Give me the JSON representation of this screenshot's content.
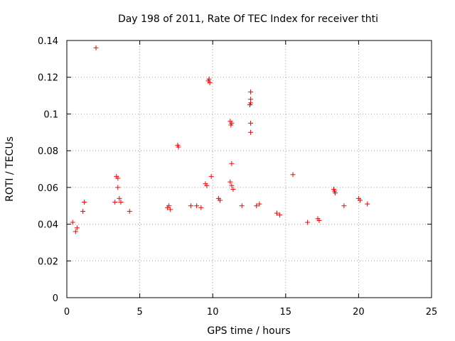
{
  "chart_data": {
    "type": "scatter",
    "title": "Day 198 of 2011, Rate Of TEC Index for receiver thti",
    "xlabel": "GPS time / hours",
    "ylabel": "ROTI / TECUs",
    "xlim": [
      0,
      25
    ],
    "ylim": [
      0,
      0.14
    ],
    "x_ticks": [
      "0",
      "5",
      "10",
      "15",
      "20",
      "25"
    ],
    "y_ticks": [
      "0",
      "0.02",
      "0.04",
      "0.06",
      "0.08",
      "0.1",
      "0.12",
      "0.14"
    ],
    "grid": true,
    "marker": "+",
    "color": "#ff0000",
    "series": [
      {
        "name": "ROTI",
        "points": [
          [
            2.0,
            0.136
          ],
          [
            9.7,
            0.118
          ],
          [
            9.8,
            0.117
          ],
          [
            9.75,
            0.119
          ],
          [
            12.6,
            0.112
          ],
          [
            12.6,
            0.108
          ],
          [
            12.6,
            0.106
          ],
          [
            12.55,
            0.105
          ],
          [
            11.2,
            0.096
          ],
          [
            11.25,
            0.094
          ],
          [
            11.3,
            0.095
          ],
          [
            12.6,
            0.095
          ],
          [
            12.6,
            0.09
          ],
          [
            7.6,
            0.083
          ],
          [
            7.65,
            0.082
          ],
          [
            11.3,
            0.073
          ],
          [
            3.4,
            0.066
          ],
          [
            3.5,
            0.065
          ],
          [
            9.9,
            0.066
          ],
          [
            15.5,
            0.067
          ],
          [
            3.5,
            0.06
          ],
          [
            9.5,
            0.062
          ],
          [
            9.6,
            0.061
          ],
          [
            11.2,
            0.063
          ],
          [
            11.3,
            0.061
          ],
          [
            11.4,
            0.059
          ],
          [
            18.3,
            0.059
          ],
          [
            18.35,
            0.058
          ],
          [
            18.4,
            0.057
          ],
          [
            3.3,
            0.052
          ],
          [
            3.6,
            0.054
          ],
          [
            3.7,
            0.052
          ],
          [
            1.2,
            0.052
          ],
          [
            1.1,
            0.047
          ],
          [
            8.5,
            0.05
          ],
          [
            8.9,
            0.05
          ],
          [
            9.2,
            0.049
          ],
          [
            10.4,
            0.054
          ],
          [
            10.5,
            0.053
          ],
          [
            12.0,
            0.05
          ],
          [
            13.0,
            0.05
          ],
          [
            13.2,
            0.051
          ],
          [
            19.0,
            0.05
          ],
          [
            20.0,
            0.054
          ],
          [
            20.1,
            0.053
          ],
          [
            20.6,
            0.051
          ],
          [
            0.4,
            0.041
          ],
          [
            0.6,
            0.036
          ],
          [
            0.7,
            0.038
          ],
          [
            6.9,
            0.049
          ],
          [
            7.0,
            0.05
          ],
          [
            7.1,
            0.048
          ],
          [
            4.3,
            0.047
          ],
          [
            14.4,
            0.046
          ],
          [
            14.6,
            0.045
          ],
          [
            17.2,
            0.043
          ],
          [
            17.3,
            0.042
          ],
          [
            16.5,
            0.041
          ]
        ]
      }
    ]
  }
}
